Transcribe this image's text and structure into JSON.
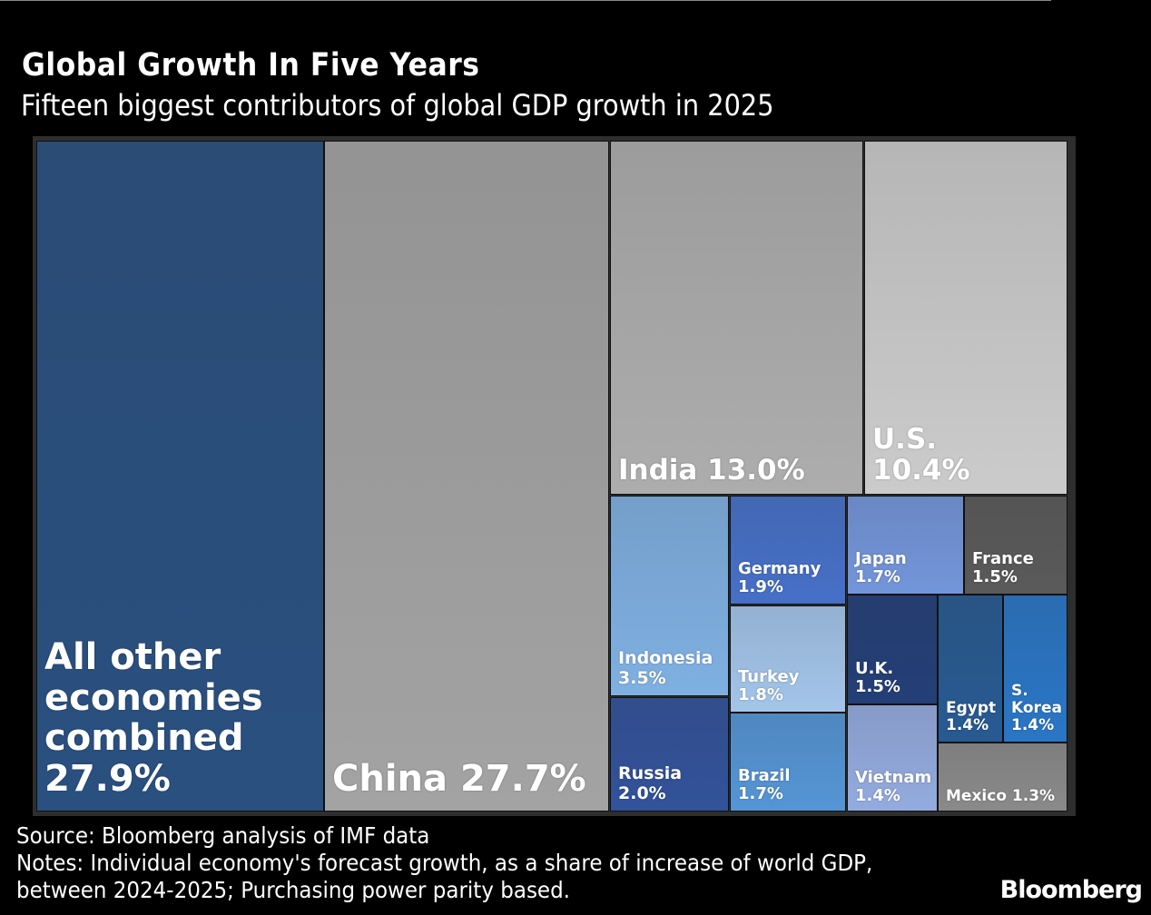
{
  "chart_data": {
    "type": "treemap",
    "title": "Global Growth In Five Years",
    "subtitle": "Fifteen biggest contributors of global GDP growth in 2025",
    "unit": "%",
    "items": [
      {
        "name": "All other economies combined",
        "value": "27.9%",
        "color": "#2a5080"
      },
      {
        "name": "China",
        "value": "27.7%",
        "color": "#a3a3a3"
      },
      {
        "name": "India",
        "value": "13.0%",
        "color": "#adadad"
      },
      {
        "name": "U.S.",
        "value": "10.4%",
        "color": "#cbcbcb"
      },
      {
        "name": "Indonesia",
        "value": "3.5%",
        "color": "#7fb0e2"
      },
      {
        "name": "Russia",
        "value": "2.0%",
        "color": "#32529a"
      },
      {
        "name": "Germany",
        "value": "1.9%",
        "color": "#4670c8"
      },
      {
        "name": "Turkey",
        "value": "1.8%",
        "color": "#a3c5ea"
      },
      {
        "name": "Brazil",
        "value": "1.7%",
        "color": "#5595d6"
      },
      {
        "name": "Japan",
        "value": "1.7%",
        "color": "#7395da"
      },
      {
        "name": "France",
        "value": "1.5%",
        "color": "#5a5a5a"
      },
      {
        "name": "U.K.",
        "value": "1.5%",
        "color": "#243f78"
      },
      {
        "name": "Vietnam",
        "value": "1.4%",
        "color": "#94abdf"
      },
      {
        "name": "Egypt",
        "value": "1.4%",
        "color": "#285a92"
      },
      {
        "name": "S. Korea",
        "value": "1.4%",
        "color": "#2a76c6"
      },
      {
        "name": "Mexico",
        "value": "1.3%",
        "color": "#8a8a8a"
      }
    ]
  },
  "footer": {
    "source": "Source: Bloomberg analysis of IMF data",
    "notes_line1": "Notes: Individual economy's forecast growth, as a share of increase of world GDP,",
    "notes_line2": "between 2024-2025; Purchasing power parity based.",
    "logo": "Bloomberg"
  }
}
